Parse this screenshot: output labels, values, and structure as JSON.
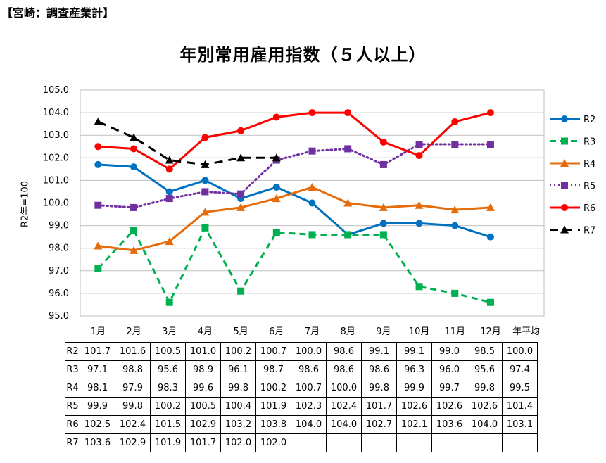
{
  "source_tag": "【宮崎：調査産業計】",
  "chart_data": {
    "type": "line",
    "title": "年別常用雇用指数（５人以上）",
    "ylabel": "R2年=100",
    "ylim": [
      95.0,
      105.0
    ],
    "ystep": 1.0,
    "grid": true,
    "legend_position": "right",
    "categories": [
      "1月",
      "2月",
      "3月",
      "4月",
      "5月",
      "6月",
      "7月",
      "8月",
      "9月",
      "10月",
      "11月",
      "12月",
      "年平均"
    ],
    "series": [
      {
        "name": "R2",
        "color": "#0070C0",
        "marker": "circle",
        "dash": "solid",
        "values": [
          101.7,
          101.6,
          100.5,
          101.0,
          100.2,
          100.7,
          100.0,
          98.6,
          99.1,
          99.1,
          99.0,
          98.5,
          100.0
        ]
      },
      {
        "name": "R3",
        "color": "#00B050",
        "marker": "square",
        "dash": "dashed",
        "values": [
          97.1,
          98.8,
          95.6,
          98.9,
          96.1,
          98.7,
          98.6,
          98.6,
          98.6,
          96.3,
          96.0,
          95.6,
          97.4
        ]
      },
      {
        "name": "R4",
        "color": "#E46C0A",
        "marker": "triangle",
        "dash": "solid",
        "values": [
          98.1,
          97.9,
          98.3,
          99.6,
          99.8,
          100.2,
          100.7,
          100.0,
          99.8,
          99.9,
          99.7,
          99.8,
          99.5
        ]
      },
      {
        "name": "R5",
        "color": "#7030A0",
        "marker": "square",
        "dash": "dotted",
        "values": [
          99.9,
          99.8,
          100.2,
          100.5,
          100.4,
          101.9,
          102.3,
          102.4,
          101.7,
          102.6,
          102.6,
          102.6,
          101.4
        ]
      },
      {
        "name": "R6",
        "color": "#FF0000",
        "marker": "circle",
        "dash": "solid",
        "values": [
          102.5,
          102.4,
          101.5,
          102.9,
          103.2,
          103.8,
          104.0,
          104.0,
          102.7,
          102.1,
          103.6,
          104.0,
          103.1
        ]
      },
      {
        "name": "R7",
        "color": "#000000",
        "marker": "triangle",
        "dash": "longdash",
        "values": [
          103.6,
          102.9,
          101.9,
          101.7,
          102.0,
          102.0,
          null,
          null,
          null,
          null,
          null,
          null,
          null
        ]
      }
    ]
  }
}
